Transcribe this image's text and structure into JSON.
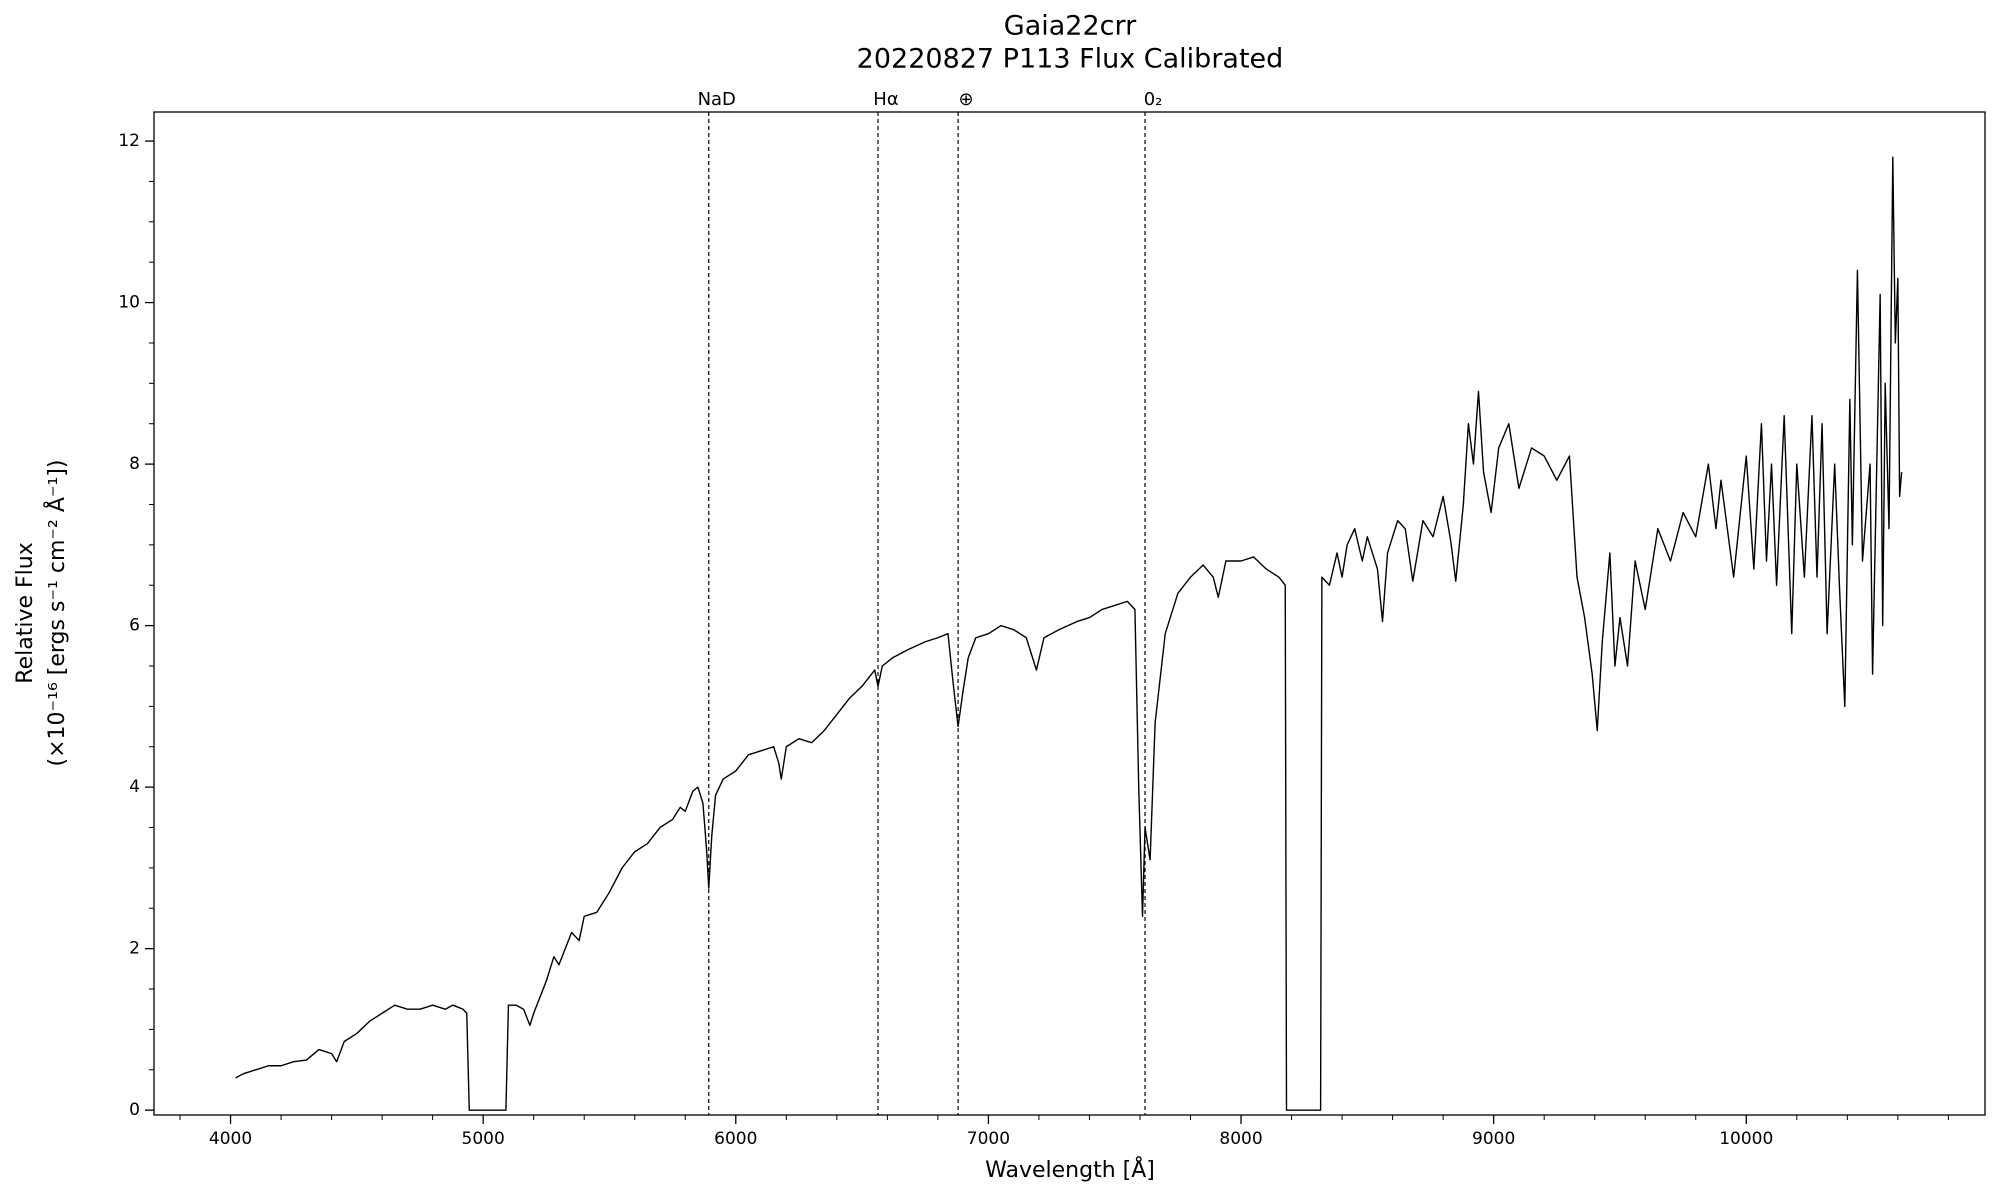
{
  "chart_data": {
    "type": "line",
    "title": "Gaia22crr",
    "subtitle": "20220827 P113 Flux Calibrated",
    "x_label": "Wavelength [Å]",
    "y_label": "Relative Flux",
    "y_label_units": "(×10⁻¹⁶ [ergs s⁻¹ cm⁻² Å⁻¹])",
    "color": "#000000",
    "xlim": [
      3697,
      10945
    ],
    "ylim": [
      -0.06,
      12.36
    ],
    "xticks": [
      4000,
      5000,
      6000,
      7000,
      8000,
      9000,
      10000
    ],
    "yticks": [
      0,
      2,
      4,
      6,
      8,
      10,
      12
    ],
    "xminorticks": [
      3800,
      4200,
      4400,
      4600,
      4800,
      5200,
      5400,
      5600,
      5800,
      6200,
      6400,
      6600,
      6800,
      7200,
      7400,
      7600,
      7800,
      8200,
      8400,
      8600,
      8800,
      9200,
      9400,
      9600,
      9800,
      10200,
      10400,
      10600,
      10800
    ],
    "yminorticks": [
      0.5,
      1,
      1.5,
      2.5,
      3,
      3.5,
      4.5,
      5,
      5.5,
      6.5,
      7,
      7.5,
      8.5,
      9,
      9.5,
      10.5,
      11,
      11.5
    ],
    "reference_lines": [
      {
        "x": 5893,
        "label": "NaD"
      },
      {
        "x": 6563,
        "label": "Hα"
      },
      {
        "x": 6880,
        "label": "⊕"
      },
      {
        "x": 7620,
        "label": "0₂"
      }
    ],
    "x": [
      4020,
      4050,
      4100,
      4150,
      4200,
      4250,
      4300,
      4350,
      4400,
      4420,
      4450,
      4500,
      4550,
      4600,
      4650,
      4700,
      4750,
      4800,
      4850,
      4880,
      4920,
      4935,
      4945,
      5090,
      5100,
      5130,
      5160,
      5185,
      5200,
      5250,
      5280,
      5300,
      5350,
      5380,
      5400,
      5450,
      5500,
      5550,
      5600,
      5650,
      5700,
      5750,
      5780,
      5800,
      5830,
      5850,
      5870,
      5885,
      5893,
      5905,
      5920,
      5950,
      6000,
      6050,
      6100,
      6150,
      6170,
      6180,
      6200,
      6250,
      6300,
      6350,
      6400,
      6450,
      6500,
      6550,
      6563,
      6580,
      6620,
      6680,
      6750,
      6800,
      6840,
      6860,
      6880,
      6900,
      6920,
      6950,
      7000,
      7050,
      7100,
      7150,
      7190,
      7220,
      7280,
      7350,
      7400,
      7450,
      7500,
      7550,
      7580,
      7595,
      7610,
      7620,
      7640,
      7660,
      7700,
      7750,
      7800,
      7850,
      7890,
      7910,
      7940,
      8000,
      8050,
      8100,
      8150,
      8175,
      8180,
      8315,
      8320,
      8350,
      8380,
      8400,
      8420,
      8450,
      8480,
      8500,
      8540,
      8560,
      8580,
      8620,
      8650,
      8680,
      8720,
      8760,
      8800,
      8830,
      8850,
      8880,
      8900,
      8920,
      8940,
      8960,
      8990,
      9020,
      9060,
      9100,
      9150,
      9200,
      9250,
      9300,
      9330,
      9360,
      9390,
      9410,
      9430,
      9460,
      9480,
      9500,
      9530,
      9560,
      9600,
      9650,
      9700,
      9750,
      9800,
      9850,
      9880,
      9900,
      9950,
      10000,
      10030,
      10060,
      10080,
      10100,
      10120,
      10150,
      10180,
      10200,
      10230,
      10260,
      10280,
      10300,
      10320,
      10350,
      10370,
      10390,
      10410,
      10420,
      10440,
      10460,
      10490,
      10500,
      10530,
      10540,
      10550,
      10565,
      10580,
      10590,
      10600,
      10607,
      10615
    ],
    "y": [
      0.4,
      0.45,
      0.5,
      0.55,
      0.55,
      0.6,
      0.62,
      0.75,
      0.7,
      0.6,
      0.85,
      0.95,
      1.1,
      1.2,
      1.3,
      1.25,
      1.25,
      1.3,
      1.25,
      1.3,
      1.25,
      1.2,
      0,
      0,
      1.3,
      1.3,
      1.25,
      1.05,
      1.2,
      1.6,
      1.9,
      1.8,
      2.2,
      2.1,
      2.4,
      2.45,
      2.7,
      3.0,
      3.2,
      3.3,
      3.5,
      3.6,
      3.75,
      3.7,
      3.95,
      4.0,
      3.8,
      3.2,
      2.75,
      3.4,
      3.9,
      4.1,
      4.2,
      4.4,
      4.45,
      4.5,
      4.3,
      4.1,
      4.5,
      4.6,
      4.55,
      4.7,
      4.9,
      5.1,
      5.25,
      5.45,
      5.25,
      5.5,
      5.6,
      5.7,
      5.8,
      5.85,
      5.9,
      5.3,
      4.75,
      5.2,
      5.6,
      5.85,
      5.9,
      6.0,
      5.95,
      5.85,
      5.45,
      5.85,
      5.95,
      6.05,
      6.1,
      6.2,
      6.25,
      6.3,
      6.2,
      4.0,
      2.4,
      3.5,
      3.1,
      4.8,
      5.9,
      6.4,
      6.6,
      6.75,
      6.6,
      6.35,
      6.8,
      6.8,
      6.85,
      6.7,
      6.6,
      6.5,
      0,
      0,
      6.6,
      6.5,
      6.9,
      6.6,
      7.0,
      7.2,
      6.8,
      7.1,
      6.7,
      6.05,
      6.9,
      7.3,
      7.2,
      6.55,
      7.3,
      7.1,
      7.6,
      7.05,
      6.55,
      7.5,
      8.5,
      8.0,
      8.9,
      7.9,
      7.4,
      8.2,
      8.5,
      7.7,
      8.2,
      8.1,
      7.8,
      8.1,
      6.6,
      6.1,
      5.4,
      4.7,
      5.8,
      6.9,
      5.5,
      6.1,
      5.5,
      6.8,
      6.2,
      7.2,
      6.8,
      7.4,
      7.1,
      8.0,
      7.2,
      7.8,
      6.6,
      8.1,
      6.7,
      8.5,
      6.8,
      8.0,
      6.5,
      8.6,
      5.9,
      8.0,
      6.6,
      8.6,
      6.6,
      8.5,
      5.9,
      8.0,
      6.4,
      5.0,
      8.8,
      7.0,
      10.4,
      6.8,
      8.0,
      5.4,
      10.1,
      6.0,
      9.0,
      7.2,
      11.8,
      9.5,
      10.3,
      7.6,
      7.9
    ]
  }
}
